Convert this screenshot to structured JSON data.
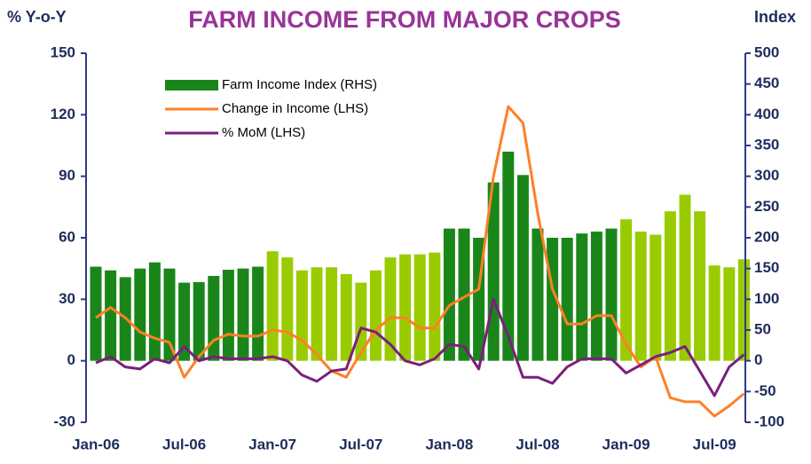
{
  "chart_data": {
    "type": "bar-line",
    "title": "FARM INCOME FROM MAJOR CROPS",
    "y_label": "% Y-o-Y",
    "y2_label": "Index",
    "categories": [
      "Jan-06",
      null,
      null,
      null,
      null,
      null,
      "Jul-06",
      null,
      null,
      null,
      null,
      null,
      "Jan-07",
      null,
      null,
      null,
      null,
      null,
      "Jul-07",
      null,
      null,
      null,
      null,
      null,
      "Jan-08",
      null,
      null,
      null,
      null,
      null,
      "Jul-08",
      null,
      null,
      null,
      null,
      null,
      "Jan-09",
      null,
      null,
      null,
      null,
      null,
      "Jul-09",
      null,
      null
    ],
    "series": [
      {
        "name": "Farm Income Index (RHS)",
        "type": "bar",
        "axis": "y2",
        "color": "#1a861a",
        "colors": [
          "#1a861a",
          "#1a861a",
          "#1a861a",
          "#1a861a",
          "#1a861a",
          "#1a861a",
          "#1a861a",
          "#1a861a",
          "#1a861a",
          "#1a861a",
          "#1a861a",
          "#1a861a",
          "#99cc00",
          "#99cc00",
          "#99cc00",
          "#99cc00",
          "#99cc00",
          "#99cc00",
          "#99cc00",
          "#99cc00",
          "#99cc00",
          "#99cc00",
          "#99cc00",
          "#99cc00",
          "#1a861a",
          "#1a861a",
          "#1a861a",
          "#1a861a",
          "#1a861a",
          "#1a861a",
          "#1a861a",
          "#1a861a",
          "#1a861a",
          "#1a861a",
          "#1a861a",
          "#1a861a",
          "#99cc00",
          "#99cc00",
          "#99cc00",
          "#99cc00",
          "#99cc00",
          "#99cc00",
          "#99cc00",
          "#99cc00",
          "#99cc00"
        ],
        "values": [
          153,
          147,
          136,
          150,
          160,
          150,
          127,
          128,
          138,
          148,
          150,
          153,
          178,
          168,
          147,
          152,
          152,
          141,
          127,
          147,
          168,
          173,
          173,
          176,
          215,
          215,
          200,
          290,
          340,
          302,
          215,
          200,
          200,
          207,
          210,
          215,
          230,
          210,
          205,
          243,
          270,
          243,
          155,
          152,
          165
        ]
      },
      {
        "name": "Change in Income (LHS)",
        "type": "line",
        "axis": "y",
        "color": "#ff7f27",
        "values": [
          21,
          26,
          21,
          14,
          11,
          9,
          -8,
          2,
          10,
          13,
          12,
          12,
          15,
          14,
          10,
          3,
          -5,
          -8,
          4,
          15,
          21,
          21,
          16,
          16,
          27,
          31,
          35,
          90,
          124,
          116,
          72,
          35,
          18,
          18,
          22,
          22,
          8,
          -3,
          2,
          -18,
          -20,
          -20,
          -27,
          -22,
          -16
        ]
      },
      {
        "name": "% MoM (LHS)",
        "type": "line",
        "axis": "y",
        "color": "#7b1f7b",
        "values": [
          -1,
          2,
          -3,
          -4,
          1,
          -1,
          7,
          0,
          2,
          1,
          1,
          1,
          2,
          0,
          -7,
          -10,
          -5,
          -4,
          16,
          14,
          8,
          0,
          -2,
          1,
          8,
          7,
          -4,
          30,
          12,
          -8,
          -8,
          -11,
          -3,
          1,
          1,
          1,
          -6,
          -2,
          2,
          4,
          7,
          -5,
          -17,
          -3,
          3
        ]
      }
    ],
    "ylim": [
      -30,
      150
    ],
    "yticks": [
      -30,
      0,
      30,
      60,
      90,
      120,
      150
    ],
    "y2lim": [
      -100,
      500
    ],
    "y2ticks": [
      -100,
      -50,
      0,
      50,
      100,
      150,
      200,
      250,
      300,
      350,
      400,
      450,
      500
    ],
    "legend": "upper left"
  }
}
